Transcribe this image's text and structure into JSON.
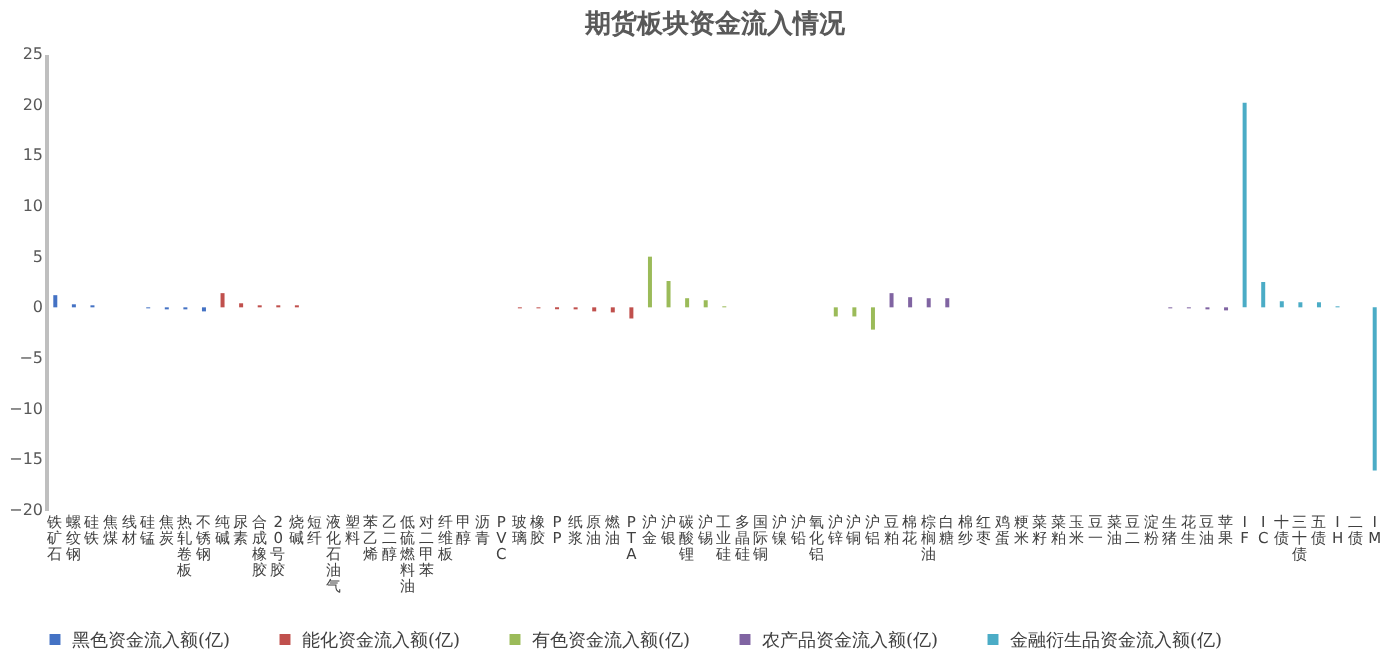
{
  "chart_data": {
    "type": "bar",
    "title": "期货板块资金流入情况",
    "categories": [
      "铁矿石",
      "螺纹钢",
      "硅铁",
      "焦煤",
      "线材",
      "硅锰",
      "焦炭",
      "热轧卷板",
      "不锈钢",
      "纯碱",
      "尿素",
      "合成橡胶",
      "20号胶",
      "烧碱",
      "短纤",
      "液化石油气",
      "塑料",
      "苯乙烯",
      "乙二醇",
      "低硫燃料油",
      "对二甲苯",
      "纤维板",
      "甲醇",
      "沥青",
      "PVC",
      "玻璃",
      "橡胶",
      "PP",
      "纸浆",
      "原油",
      "燃油",
      "PTA",
      "沪金",
      "沪银",
      "碳酸锂",
      "沪锡",
      "工业硅",
      "多晶硅",
      "国际铜",
      "沪镍",
      "沪铅",
      "氧化铝",
      "沪锌",
      "沪铜",
      "沪铝",
      "豆粕",
      "棉花",
      "棕榈油",
      "白糖",
      "棉纱",
      "红枣",
      "鸡蛋",
      "粳米",
      "菜籽",
      "菜粕",
      "玉米",
      "豆一",
      "菜油",
      "豆二",
      "淀粉",
      "生猪",
      "花生",
      "豆油",
      "苹果",
      "IF",
      "IC",
      "十债",
      "三十债",
      "五债",
      "IH",
      "二债",
      "IM"
    ],
    "series": [
      {
        "name": "黑色资金流入额(亿)",
        "color": "#4472c4",
        "values": [
          1.2,
          0.3,
          0.2,
          0,
          0,
          -0.1,
          -0.2,
          -0.2,
          -0.4,
          null,
          null,
          null,
          null,
          null,
          null,
          null,
          null,
          null,
          null,
          null,
          null,
          null,
          null,
          null,
          null,
          null,
          null,
          null,
          null,
          null,
          null,
          null,
          null,
          null,
          null,
          null,
          null,
          null,
          null,
          null,
          null,
          null,
          null,
          null,
          null,
          null,
          null,
          null,
          null,
          null,
          null,
          null,
          null,
          null,
          null,
          null,
          null,
          null,
          null,
          null,
          null,
          null,
          null,
          null,
          null,
          null,
          null,
          null,
          null,
          null,
          null,
          null
        ]
      },
      {
        "name": "能化资金流入额(亿)",
        "color": "#c0504d",
        "values": [
          null,
          null,
          null,
          null,
          null,
          null,
          null,
          null,
          null,
          1.4,
          0.4,
          0.2,
          0.2,
          0.2,
          0,
          0,
          0,
          0,
          0,
          0,
          0,
          0,
          0,
          0,
          0,
          -0.1,
          -0.1,
          -0.2,
          -0.2,
          -0.4,
          -0.5,
          -1.1,
          null,
          null,
          null,
          null,
          null,
          null,
          null,
          null,
          null,
          null,
          null,
          null,
          null,
          null,
          null,
          null,
          null,
          null,
          null,
          null,
          null,
          null,
          null,
          null,
          null,
          null,
          null,
          null,
          null,
          null,
          null,
          null,
          null,
          null,
          null,
          null,
          null,
          null,
          null,
          null
        ]
      },
      {
        "name": "有色资金流入额(亿)",
        "color": "#9bbb59",
        "values": [
          null,
          null,
          null,
          null,
          null,
          null,
          null,
          null,
          null,
          null,
          null,
          null,
          null,
          null,
          null,
          null,
          null,
          null,
          null,
          null,
          null,
          null,
          null,
          null,
          null,
          null,
          null,
          null,
          null,
          null,
          null,
          null,
          5.0,
          2.6,
          0.9,
          0.7,
          0.1,
          0,
          0,
          0,
          0,
          0,
          -0.9,
          -0.9,
          -2.2,
          null,
          null,
          null,
          null,
          null,
          null,
          null,
          null,
          null,
          null,
          null,
          null,
          null,
          null,
          null,
          null,
          null,
          null,
          null,
          null,
          null,
          null,
          null,
          null,
          null,
          null,
          null
        ]
      },
      {
        "name": "农产品资金流入额(亿)",
        "color": "#8064a2",
        "values": [
          null,
          null,
          null,
          null,
          null,
          null,
          null,
          null,
          null,
          null,
          null,
          null,
          null,
          null,
          null,
          null,
          null,
          null,
          null,
          null,
          null,
          null,
          null,
          null,
          null,
          null,
          null,
          null,
          null,
          null,
          null,
          null,
          null,
          null,
          null,
          null,
          null,
          null,
          null,
          null,
          null,
          null,
          null,
          null,
          null,
          1.4,
          1.0,
          0.9,
          0.9,
          0,
          0,
          0,
          0,
          0,
          0,
          0,
          0,
          0,
          0,
          0,
          -0.1,
          -0.1,
          -0.2,
          -0.3,
          null,
          null,
          null,
          null,
          null,
          null,
          null,
          null
        ]
      },
      {
        "name": "金融衍生品资金流入额(亿)",
        "color": "#4bacc6",
        "values": [
          null,
          null,
          null,
          null,
          null,
          null,
          null,
          null,
          null,
          null,
          null,
          null,
          null,
          null,
          null,
          null,
          null,
          null,
          null,
          null,
          null,
          null,
          null,
          null,
          null,
          null,
          null,
          null,
          null,
          null,
          null,
          null,
          null,
          null,
          null,
          null,
          null,
          null,
          null,
          null,
          null,
          null,
          null,
          null,
          null,
          null,
          null,
          null,
          null,
          null,
          null,
          null,
          null,
          null,
          null,
          null,
          null,
          null,
          null,
          null,
          null,
          null,
          null,
          null,
          20.2,
          2.5,
          0.6,
          0.5,
          0.5,
          0.1,
          0,
          -16.1
        ]
      }
    ],
    "ylim": [
      -20,
      25
    ],
    "yticks": [
      -20,
      -15,
      -10,
      -5,
      0,
      5,
      10,
      15,
      20,
      25
    ],
    "grid": false,
    "legend": "bottom"
  }
}
